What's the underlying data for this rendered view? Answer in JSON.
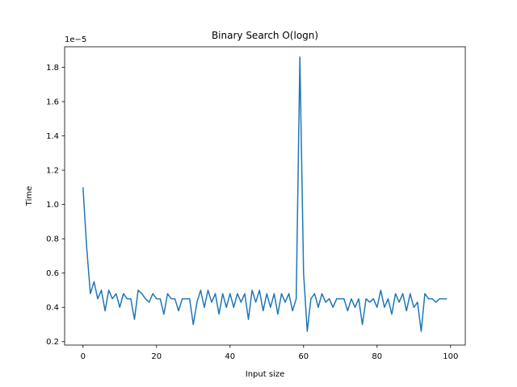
{
  "chart_data": {
    "type": "line",
    "title": "Binary Search O(logn)",
    "xlabel": "Input size",
    "ylabel": "Time",
    "y_offset_label": "1e−5",
    "xlim": [
      -5.0,
      104.0
    ],
    "ylim": [
      0.18,
      1.92
    ],
    "x_ticks": [
      0,
      20,
      40,
      60,
      80,
      100
    ],
    "y_ticks": [
      0.2,
      0.4,
      0.6,
      0.8,
      1.0,
      1.2,
      1.4,
      1.6,
      1.8
    ],
    "x_tick_labels": [
      "0",
      "20",
      "40",
      "60",
      "80",
      "100"
    ],
    "y_tick_labels": [
      "0.2",
      "0.4",
      "0.6",
      "0.8",
      "1.0",
      "1.2",
      "1.4",
      "1.6",
      "1.8"
    ],
    "grid": false,
    "series": [
      {
        "color": "#1f77b4",
        "x": [
          0,
          1,
          2,
          3,
          4,
          5,
          6,
          7,
          8,
          9,
          10,
          11,
          12,
          13,
          14,
          15,
          16,
          17,
          18,
          19,
          20,
          21,
          22,
          23,
          24,
          25,
          26,
          27,
          28,
          29,
          30,
          31,
          32,
          33,
          34,
          35,
          36,
          37,
          38,
          39,
          40,
          41,
          42,
          43,
          44,
          45,
          46,
          47,
          48,
          49,
          50,
          51,
          52,
          53,
          54,
          55,
          56,
          57,
          58,
          59,
          60,
          61,
          62,
          63,
          64,
          65,
          66,
          67,
          68,
          69,
          70,
          71,
          72,
          73,
          74,
          75,
          76,
          77,
          78,
          79,
          80,
          81,
          82,
          83,
          84,
          85,
          86,
          87,
          88,
          89,
          90,
          91,
          92,
          93,
          94,
          95,
          96,
          97,
          98,
          99
        ],
        "values": [
          1.1,
          0.75,
          0.48,
          0.55,
          0.45,
          0.5,
          0.38,
          0.5,
          0.45,
          0.48,
          0.4,
          0.48,
          0.45,
          0.45,
          0.33,
          0.5,
          0.48,
          0.45,
          0.43,
          0.48,
          0.45,
          0.45,
          0.36,
          0.48,
          0.45,
          0.45,
          0.38,
          0.45,
          0.45,
          0.45,
          0.3,
          0.43,
          0.5,
          0.4,
          0.5,
          0.43,
          0.48,
          0.36,
          0.48,
          0.4,
          0.48,
          0.4,
          0.48,
          0.43,
          0.48,
          0.33,
          0.5,
          0.43,
          0.5,
          0.38,
          0.48,
          0.4,
          0.48,
          0.36,
          0.48,
          0.43,
          0.48,
          0.38,
          0.45,
          1.86,
          0.6,
          0.26,
          0.45,
          0.48,
          0.4,
          0.48,
          0.43,
          0.45,
          0.4,
          0.45,
          0.45,
          0.45,
          0.38,
          0.45,
          0.4,
          0.45,
          0.3,
          0.45,
          0.43,
          0.45,
          0.4,
          0.5,
          0.4,
          0.45,
          0.36,
          0.48,
          0.43,
          0.48,
          0.38,
          0.48,
          0.4,
          0.43,
          0.26,
          0.48,
          0.45,
          0.45,
          0.43,
          0.45,
          0.45,
          0.45
        ]
      }
    ]
  }
}
